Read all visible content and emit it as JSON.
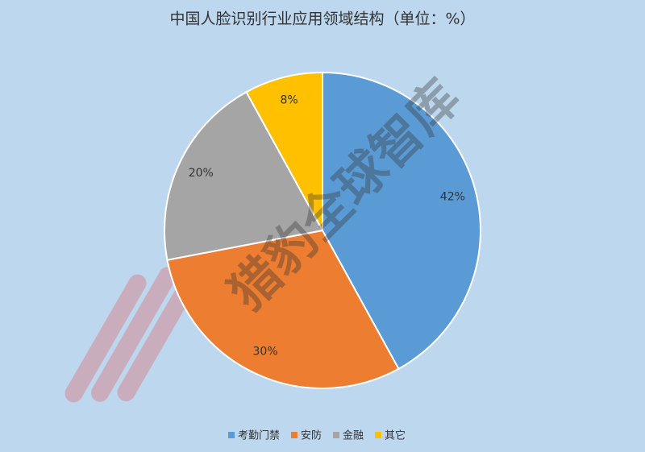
{
  "chart_data": {
    "type": "pie",
    "title": "中国人脸识别行业应用领域结构（单位：%）",
    "categories": [
      "考勤门禁",
      "安防",
      "金融",
      "其它"
    ],
    "values": [
      42,
      30,
      20,
      8
    ],
    "value_labels": [
      "42%",
      "30%",
      "20%",
      "8%"
    ],
    "colors": [
      "#5b9bd5",
      "#ed7d31",
      "#a5a5a5",
      "#ffc000"
    ],
    "legend": "bottom",
    "watermark": "猎豹全球智库"
  }
}
